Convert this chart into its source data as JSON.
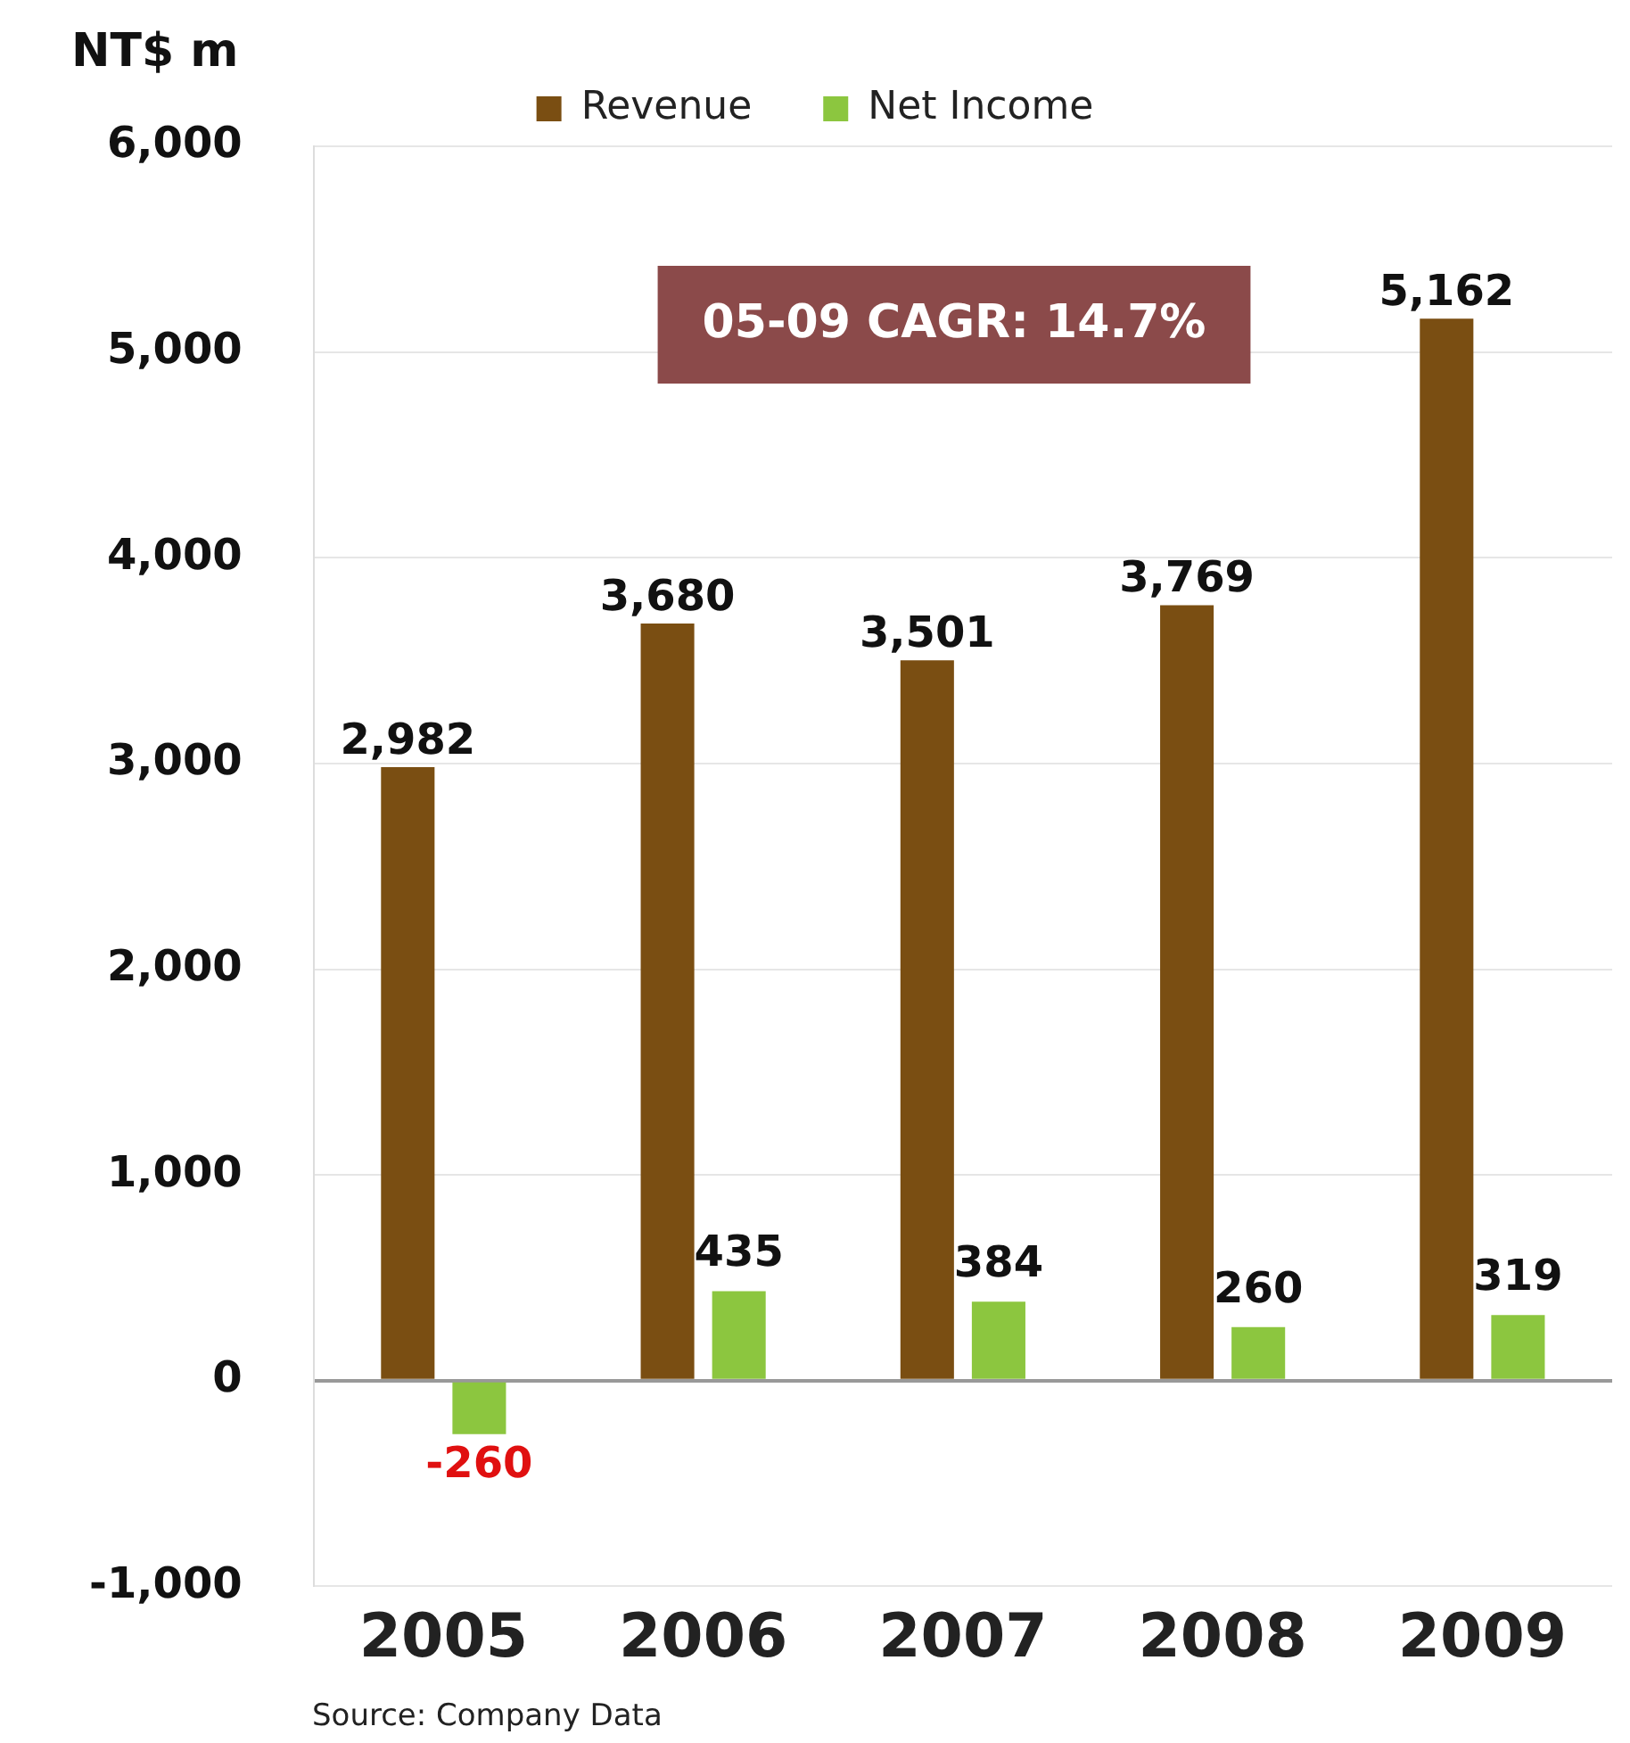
{
  "chart_data": {
    "type": "bar",
    "ylabel": "NT$ m",
    "categories": [
      "2005",
      "2006",
      "2007",
      "2008",
      "2009"
    ],
    "series": [
      {
        "name": "Revenue",
        "color": "#7a4e12",
        "values": [
          2982,
          3680,
          3501,
          3769,
          5162
        ],
        "value_labels": [
          "2,982",
          "3,680",
          "3,501",
          "3,769",
          "5,162"
        ]
      },
      {
        "name": "Net Income",
        "color": "#8cc63f",
        "values": [
          -260,
          435,
          384,
          260,
          319
        ],
        "value_labels": [
          "-260",
          "435",
          "384",
          "260",
          "319"
        ]
      }
    ],
    "ylim": [
      -1000,
      6000
    ],
    "yticks": [
      {
        "value": -1000,
        "label": "-1,000"
      },
      0,
      {
        "value": 1000,
        "label": "1,000"
      },
      {
        "value": 2000,
        "label": "2,000"
      },
      {
        "value": 3000,
        "label": "3,000"
      },
      {
        "value": 4000,
        "label": "4,000"
      },
      {
        "value": 5000,
        "label": "5,000"
      },
      {
        "value": 6000,
        "label": "6,000"
      }
    ],
    "grid": "y",
    "legend": "top",
    "annotations": [
      "05-09 CAGR: 14.7%",
      "Source:  Company Data"
    ]
  }
}
